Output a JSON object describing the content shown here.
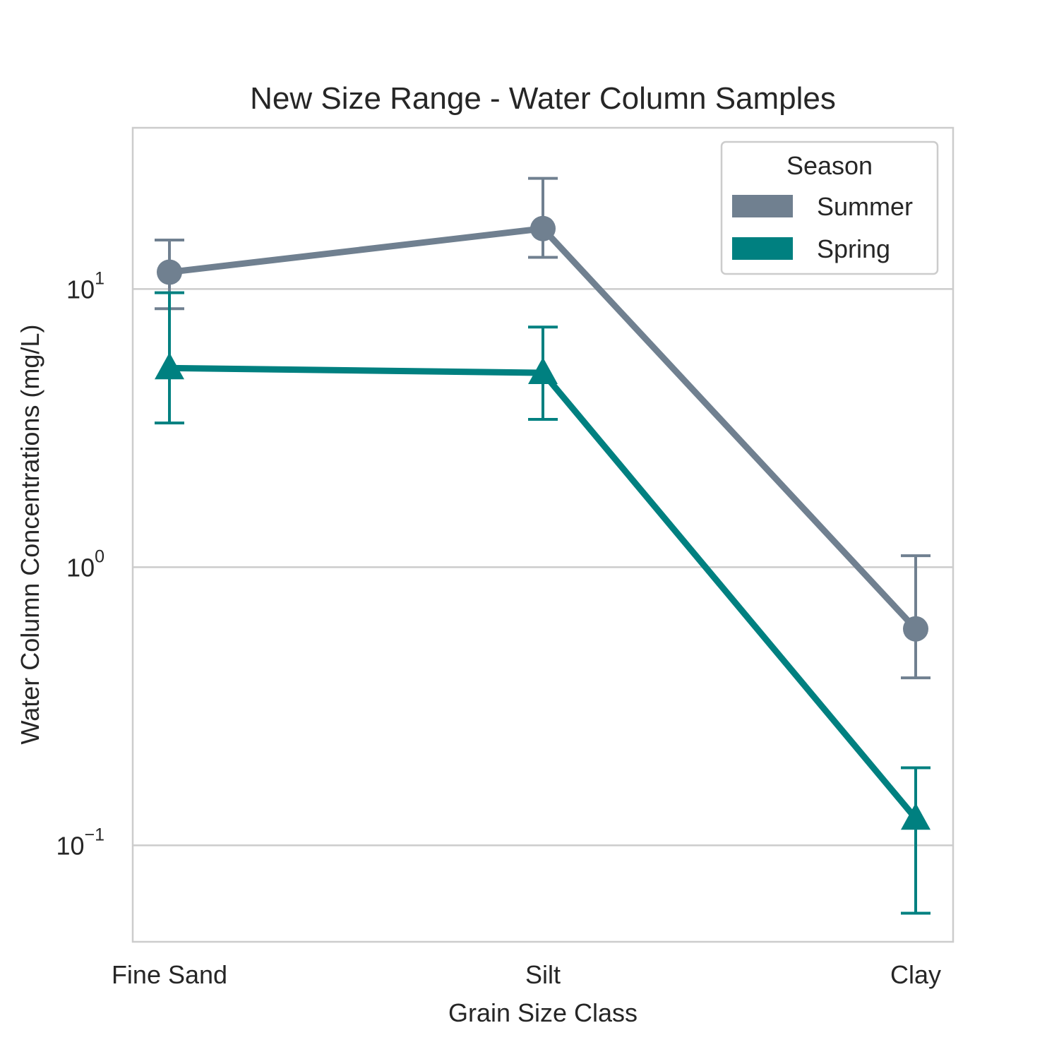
{
  "chart_data": {
    "type": "line",
    "title": "New Size Range - Water Column Samples",
    "xlabel": "Grain Size Class",
    "ylabel": "Water Column Concentrations (mg/L)",
    "categories": [
      "Fine Sand",
      "Silt",
      "Clay"
    ],
    "yscale": "log",
    "ylim": [
      0.045,
      38
    ],
    "yticks": [
      {
        "value": 10,
        "base": "10",
        "exp": "1"
      },
      {
        "value": 1,
        "base": "10",
        "exp": "0"
      },
      {
        "value": 0.1,
        "base": "10",
        "exp": "−1"
      }
    ],
    "grid": "horizontal",
    "legend": {
      "title": "Season",
      "placement": "top-right"
    },
    "series": [
      {
        "name": "Summer",
        "color": "#708090",
        "marker": "circle",
        "values": [
          11.5,
          16.5,
          0.6
        ],
        "err_low": [
          8.5,
          13.0,
          0.4
        ],
        "err_high": [
          15.0,
          25.0,
          1.1
        ]
      },
      {
        "name": "Spring",
        "color": "#008080",
        "marker": "triangle",
        "values": [
          5.2,
          5.0,
          0.125
        ],
        "err_low": [
          3.3,
          3.4,
          0.057
        ],
        "err_high": [
          9.7,
          7.3,
          0.19
        ]
      }
    ]
  }
}
